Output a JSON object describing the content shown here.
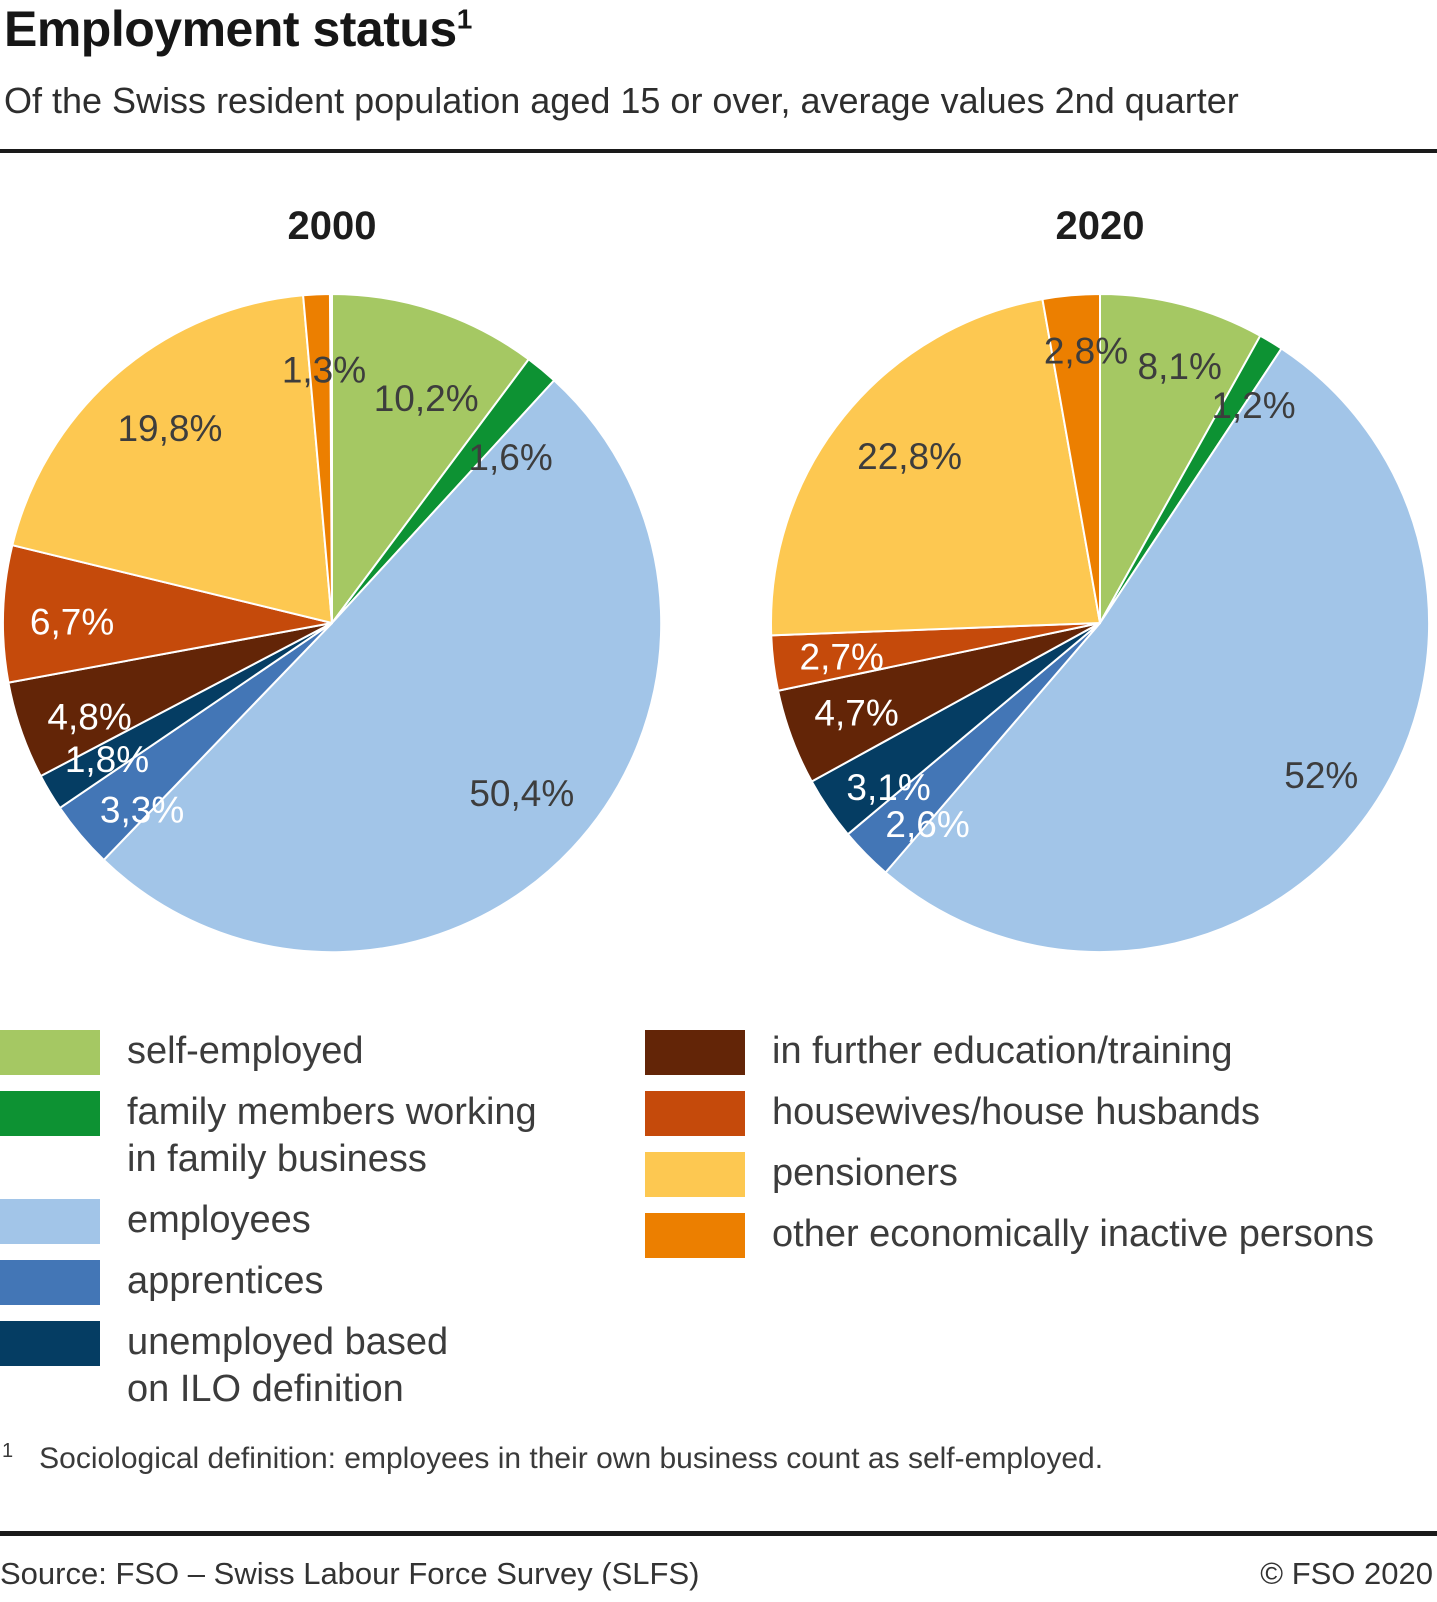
{
  "header": {
    "title": "Employment status",
    "title_superscript": "1",
    "subtitle": "Of the Swiss resident population aged 15 or over, average values 2nd quarter"
  },
  "palette": {
    "self-employed": "#a5c863",
    "family members working in family business": "#0d9233",
    "employees": "#a2c5e8",
    "apprentices": "#4376b6",
    "unemployed based on ILO definition": "#053d63",
    "in further education/training": "#632507",
    "housewives/house husbands": "#c54a0b",
    "pensioners": "#fdc851",
    "other economically inactive persons": "#ec7f00"
  },
  "chart_data": [
    {
      "type": "pie",
      "title": "2000",
      "unit": "%",
      "start_angle_deg": 0,
      "direction": "clockwise",
      "slices": [
        {
          "category": "self-employed",
          "value": 10.2,
          "display": "10,2%",
          "label_r": 0.74,
          "label_da": 4.4,
          "label_color": "dark"
        },
        {
          "category": "family members working in family business",
          "value": 1.6,
          "display": "1,6%",
          "label_r": 0.74,
          "label_da": 7.6,
          "label_color": "dark"
        },
        {
          "category": "employees",
          "value": 50.4,
          "display": "50,4%",
          "label_r": 0.775,
          "label_da": -1.3,
          "label_color": "dark"
        },
        {
          "category": "apprentices",
          "value": 3.3,
          "display": "3,3%",
          "label_r": 0.81,
          "label_da": -4.4,
          "label_color": "light"
        },
        {
          "category": "unemployed based on ILO definition",
          "value": 1.8,
          "display": "1,8%",
          "label_r": 0.8,
          "label_da": -0.3,
          "label_color": "light"
        },
        {
          "category": "in further education/training",
          "value": 4.8,
          "display": "4,8%",
          "label_r": 0.79,
          "label_da": -2.1,
          "label_color": "light"
        },
        {
          "category": "housewives/house husbands",
          "value": 6.7,
          "display": "6,7%",
          "label_r": 0.79,
          "label_da": -1.4,
          "label_color": "light"
        },
        {
          "category": "pensioners",
          "value": 19.8,
          "display": "19,8%",
          "label_r": 0.77,
          "label_da": 0.9,
          "label_color": "dark"
        },
        {
          "category": "other economically inactive persons",
          "value": 1.3,
          "display": "1,3%",
          "label_r": 0.77,
          "label_da": 0.9,
          "label_color": "dark"
        }
      ]
    },
    {
      "type": "pie",
      "title": "2020",
      "unit": "%",
      "start_angle_deg": 0,
      "direction": "clockwise",
      "slices": [
        {
          "category": "self-employed",
          "value": 8.1,
          "display": "8,1%",
          "label_r": 0.816,
          "label_da": 2.7,
          "label_color": "dark"
        },
        {
          "category": "family members working in family business",
          "value": 1.2,
          "display": "1,2%",
          "label_r": 0.809,
          "label_da": 3.9,
          "label_color": "dark"
        },
        {
          "category": "employees",
          "value": 52,
          "display": "52%",
          "label_r": 0.817,
          "label_da": -2.5,
          "label_color": "dark"
        },
        {
          "category": "apprentices",
          "value": 2.6,
          "display": "2,6%",
          "label_r": 0.806,
          "label_da": -4.8,
          "label_color": "light"
        },
        {
          "category": "unemployed based on ILO definition",
          "value": 3.1,
          "display": "3,1%",
          "label_r": 0.814,
          "label_da": -3.5,
          "label_color": "light"
        },
        {
          "category": "in further education/training",
          "value": 4.7,
          "display": "4,7%",
          "label_r": 0.789,
          "label_da": 0,
          "label_color": "light"
        },
        {
          "category": "housewives/house husbands",
          "value": 2.7,
          "display": "2,7%",
          "label_r": 0.792,
          "label_da": -0.5,
          "label_color": "light"
        },
        {
          "category": "pensioners",
          "value": 22.8,
          "display": "22,8%",
          "label_r": 0.769,
          "label_da": 2.3,
          "label_color": "dark"
        },
        {
          "category": "other economically inactive persons",
          "value": 2.8,
          "display": "2,8%",
          "label_r": 0.828,
          "label_da": 2.1,
          "label_color": "dark"
        }
      ]
    }
  ],
  "legend": {
    "columns": [
      [
        {
          "category": "self-employed",
          "lines": [
            "self-employed"
          ]
        },
        {
          "category": "family members working in family business",
          "lines": [
            "family members working",
            "in family business"
          ]
        },
        {
          "category": "employees",
          "lines": [
            "employees"
          ]
        },
        {
          "category": "apprentices",
          "lines": [
            "apprentices"
          ]
        },
        {
          "category": "unemployed based on ILO definition",
          "lines": [
            "unemployed based",
            "on ILO definition"
          ]
        }
      ],
      [
        {
          "category": "in further education/training",
          "lines": [
            "in further education/training"
          ]
        },
        {
          "category": "housewives/house husbands",
          "lines": [
            "housewives/house husbands"
          ]
        },
        {
          "category": "pensioners",
          "lines": [
            "pensioners"
          ]
        },
        {
          "category": "other economically inactive persons",
          "lines": [
            "other economically inactive persons"
          ]
        }
      ]
    ]
  },
  "footnote": {
    "marker": "1",
    "text": "Sociological definition: employees in their own business count as self-employed."
  },
  "footer": {
    "source": "Source: FSO – Swiss Labour Force Survey (SLFS)",
    "copyright": "© FSO 2020"
  },
  "label_colors": {
    "dark": "#3d3d3d",
    "light": "#ffffff"
  }
}
